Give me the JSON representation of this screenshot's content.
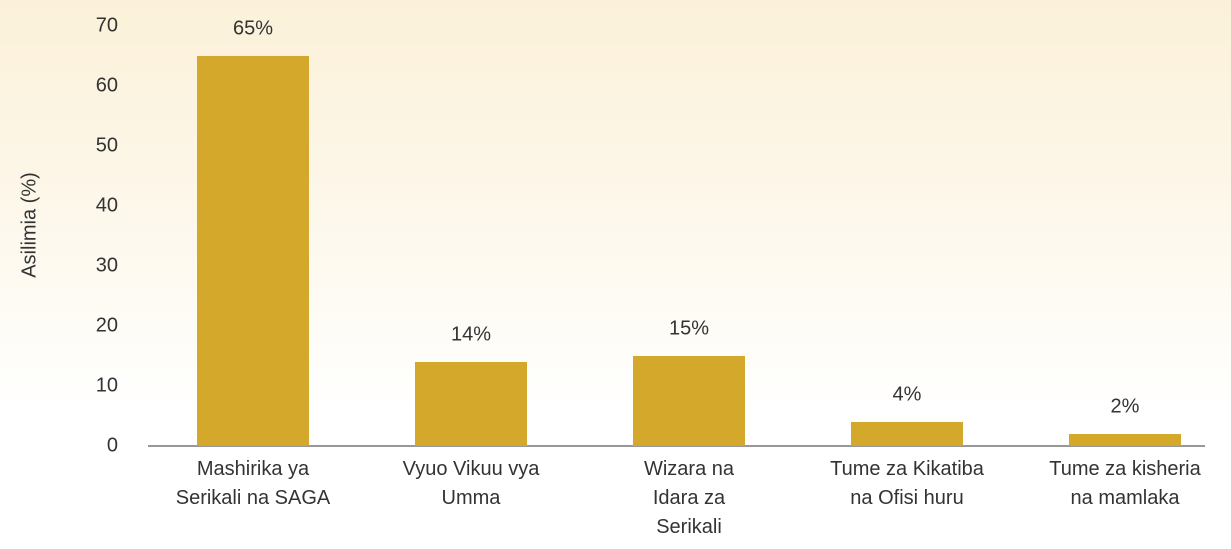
{
  "chart_data": {
    "type": "bar",
    "y_label": "Asilimia (%)",
    "categories": [
      "Mashirika ya\nSerikali na SAGA",
      "Vyuo Vikuu vya\nUmma",
      "Wizara na\nIdara za\nSerikali",
      "Tume za Kikatiba\nna Ofisi huru",
      "Tume za kisheria\nna mamlaka"
    ],
    "values": [
      65,
      14,
      15,
      4,
      2
    ],
    "value_labels": [
      "65%",
      "14%",
      "15%",
      "4%",
      "2%"
    ],
    "color": "#d4a92b",
    "ylim": [
      0,
      70
    ],
    "yticks": [
      0,
      10,
      20,
      30,
      40,
      50,
      60,
      70
    ],
    "grid": false
  }
}
